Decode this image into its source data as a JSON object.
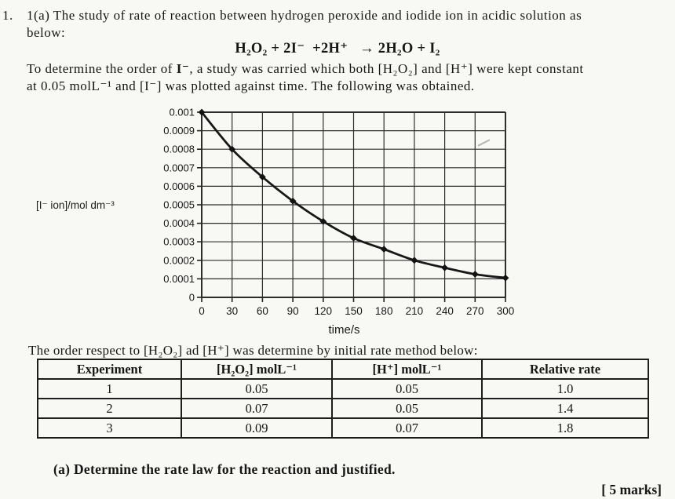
{
  "doc": {
    "question_number": "1.",
    "intro_line1": "1(a) The study of rate of reaction between hydrogen peroxide and iodide ion in acidic solution as",
    "intro_line2": "below:",
    "equation": "H₂O₂ + 2I⁻  +2H⁺   → 2H₂O + I₂",
    "para_before_bold": "To determine the order of ",
    "para_bold": "I⁻",
    "para_after_bold": ", a study was carried which both [H₂O₂] and [H⁺] were kept constant",
    "para_line2": "at 0.05 molL⁻¹ and [I⁻] was plotted against time. The following was obtained.",
    "table_caption": "The order respect to [H₂O₂] ad [H⁺] was determine by initial rate method below:",
    "question_a": "(a) Determine the rate law for the reaction and justified.",
    "marks": "[ 5 marks]"
  },
  "table": {
    "headers": [
      "Experiment",
      "[H₂O₂] molL⁻¹",
      "[H⁺] molL⁻¹",
      "Relative rate"
    ],
    "rows": [
      [
        "1",
        "0.05",
        "0.05",
        "1.0"
      ],
      [
        "2",
        "0.07",
        "0.05",
        "1.4"
      ],
      [
        "3",
        "0.09",
        "0.07",
        "1.8"
      ]
    ]
  },
  "chart_data": {
    "type": "line",
    "title": "",
    "xlabel": "time/s",
    "ylabel": "[I⁻ ion]/mol dm⁻³",
    "x": [
      0,
      30,
      60,
      90,
      120,
      150,
      180,
      210,
      240,
      270,
      300
    ],
    "y": [
      0.001,
      0.0008,
      0.00065,
      0.00052,
      0.00041,
      0.00032,
      0.00026,
      0.0002,
      0.00016,
      0.000125,
      0.000105
    ],
    "xlim": [
      0,
      300
    ],
    "ylim": [
      0,
      0.001
    ],
    "xticks": [
      "0",
      "30",
      "60",
      "90",
      "120",
      "150",
      "180",
      "210",
      "240",
      "270",
      "300"
    ],
    "ytick_labels": [
      "0.001",
      "0.0009",
      "0.0008",
      "0.0007",
      "0.0006",
      "0.0005",
      "0.0004",
      "0.0003",
      "0.0002",
      "0.0001",
      "0"
    ],
    "grid": true,
    "legend": "none",
    "marker": "diamond",
    "line_color": "#181818"
  }
}
